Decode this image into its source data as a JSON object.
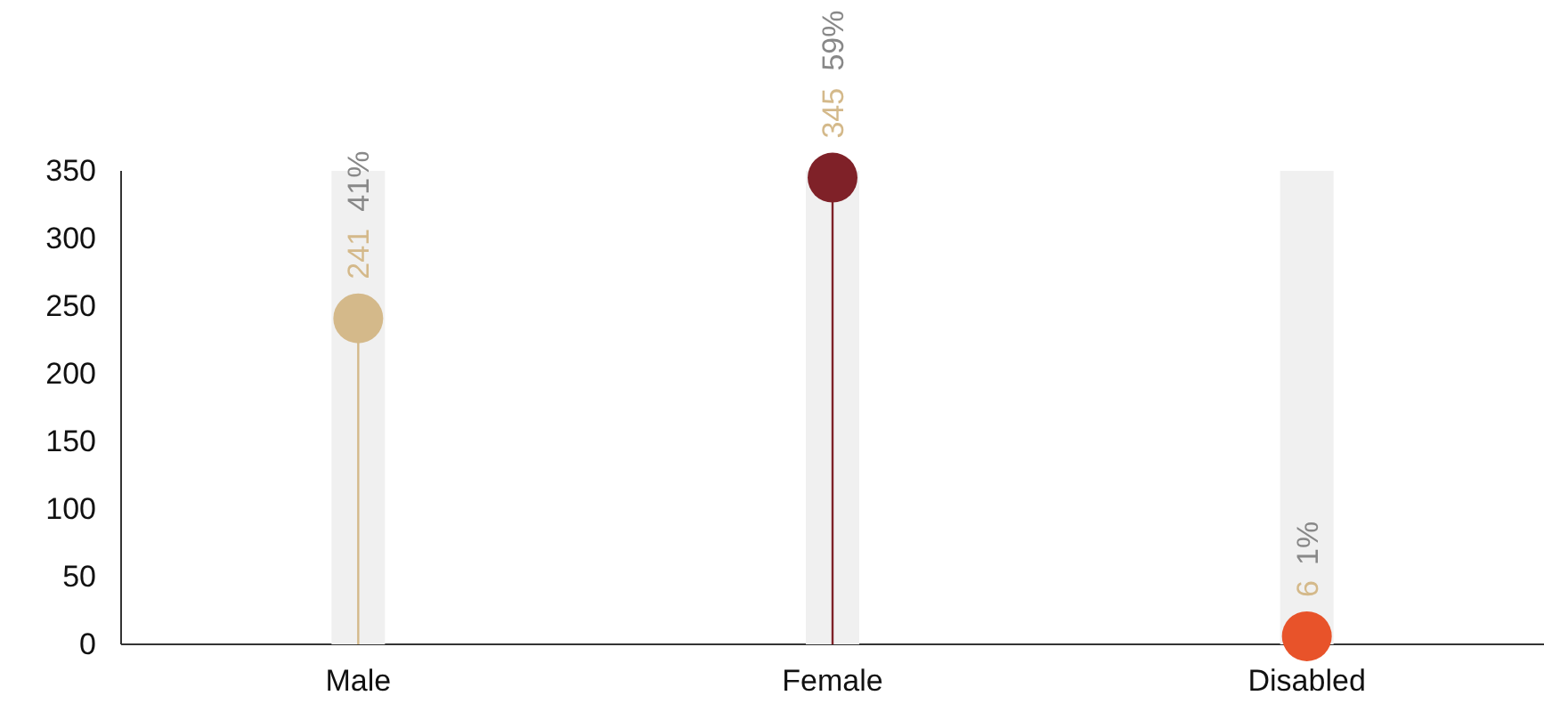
{
  "chart_data": {
    "type": "lollipop",
    "categories": [
      "Male",
      "Female",
      "Disabled"
    ],
    "series": [
      {
        "type": "bar",
        "color": "#f0f0f0",
        "values": [
          350,
          350,
          350
        ]
      },
      {
        "colors": [
          "#d4b98a",
          "#7f2128",
          "#e8532a"
        ],
        "values": [
          241,
          345,
          6
        ],
        "value_labels": [
          "241",
          "345",
          "6"
        ]
      }
    ],
    "ylim": [
      0,
      350
    ],
    "yticks": [
      0,
      50,
      100,
      150,
      200,
      250,
      300,
      350
    ],
    "grid": false,
    "annotations": [
      "41%",
      "59%",
      "1%"
    ]
  }
}
